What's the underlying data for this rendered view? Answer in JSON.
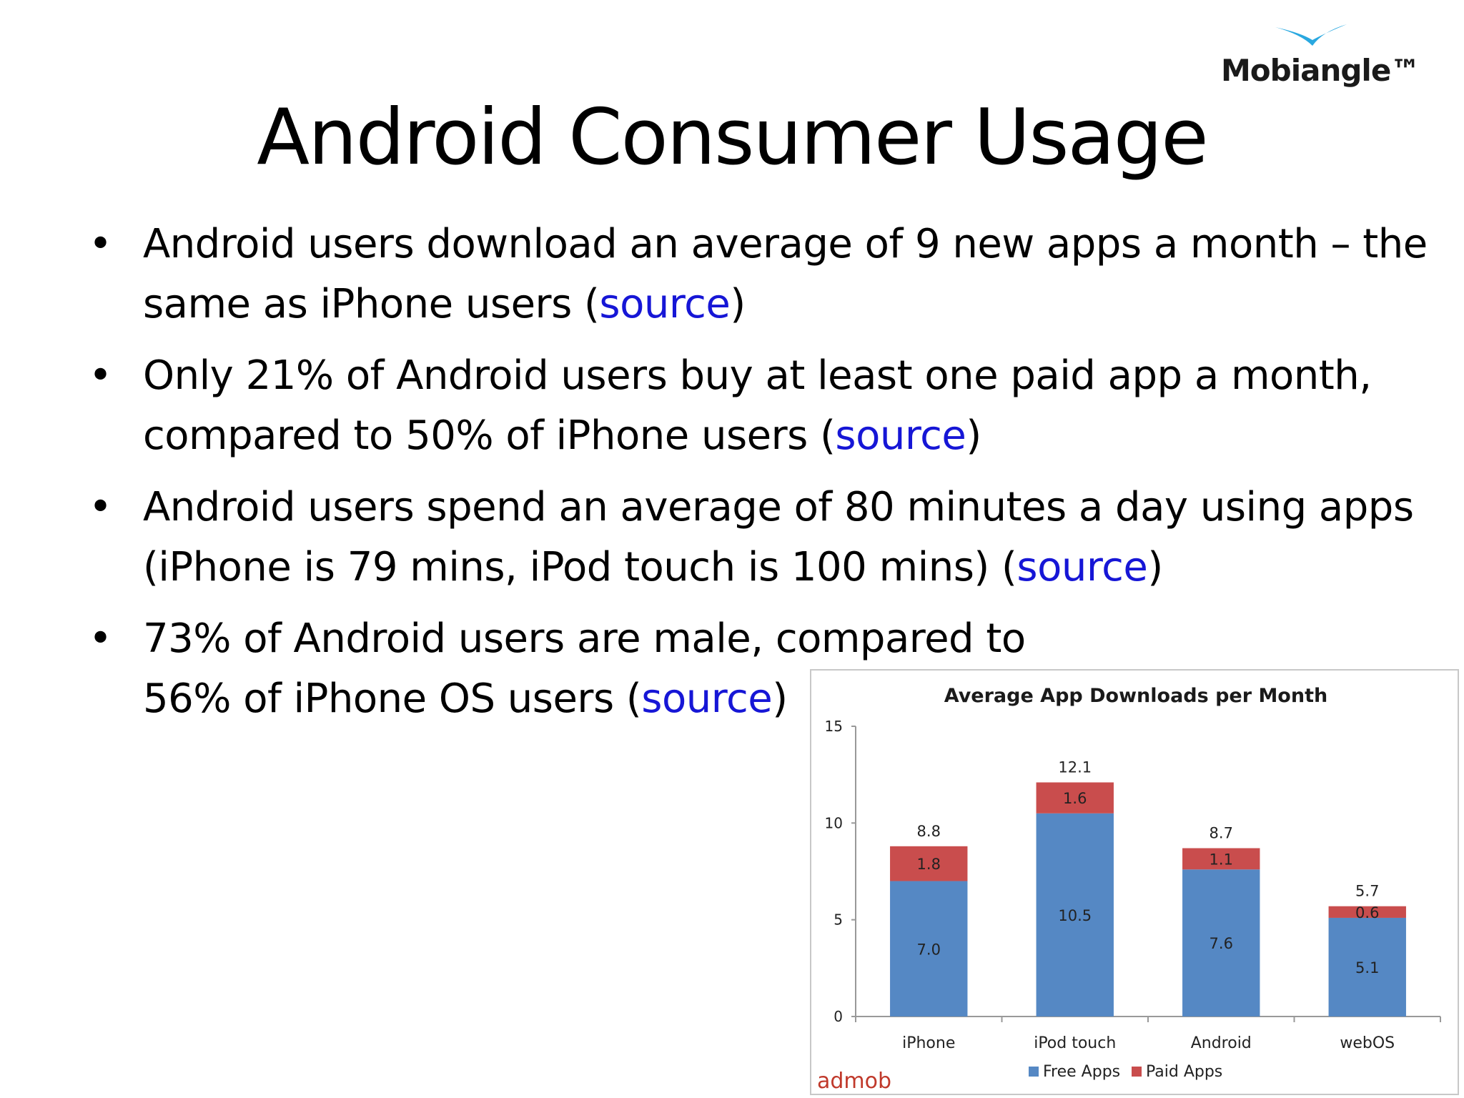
{
  "logo": {
    "text": "Mobiangle™",
    "color": "#29a8e0"
  },
  "title": "Android Consumer Usage",
  "bullets": [
    {
      "text": "Android users download an average of 9 new apps a month – the same as iPhone users (",
      "link": "source",
      "after": ")"
    },
    {
      "text": "Only 21% of Android users buy at least one paid app a month, compared to 50% of iPhone users (",
      "link": "source",
      "after": ")"
    },
    {
      "text": "Android users spend an average of 80 minutes a day using apps (iPhone is 79 mins, iPod touch is 100 mins) (",
      "link": "source",
      "after": ")"
    },
    {
      "text": "73% of Android users are male, compared to 56% of iPhone OS users (",
      "link": "source",
      "after": ")"
    }
  ],
  "link_color": "#1616d6",
  "chart_data": {
    "type": "bar",
    "stacked": true,
    "title": "Average App Downloads per Month",
    "categories": [
      "iPhone",
      "iPod touch",
      "Android",
      "webOS"
    ],
    "series": [
      {
        "name": "Free Apps",
        "values": [
          7.0,
          10.5,
          7.6,
          5.1
        ],
        "labels": [
          "7.0",
          "10.5",
          "7.6",
          "5.1"
        ],
        "color": "#5588c4"
      },
      {
        "name": "Paid Apps",
        "values": [
          1.8,
          1.6,
          1.1,
          0.6
        ],
        "labels": [
          "1.8",
          "1.6",
          "1.1",
          "0.6"
        ],
        "color": "#c94d4d"
      }
    ],
    "totals": [
      "8.8",
      "12.1",
      "8.7",
      "5.7"
    ],
    "yticks": [
      "0",
      "5",
      "10",
      "15"
    ],
    "ylim": [
      0,
      15
    ],
    "legend": "bottom",
    "grid": false,
    "watermark": "admob"
  }
}
